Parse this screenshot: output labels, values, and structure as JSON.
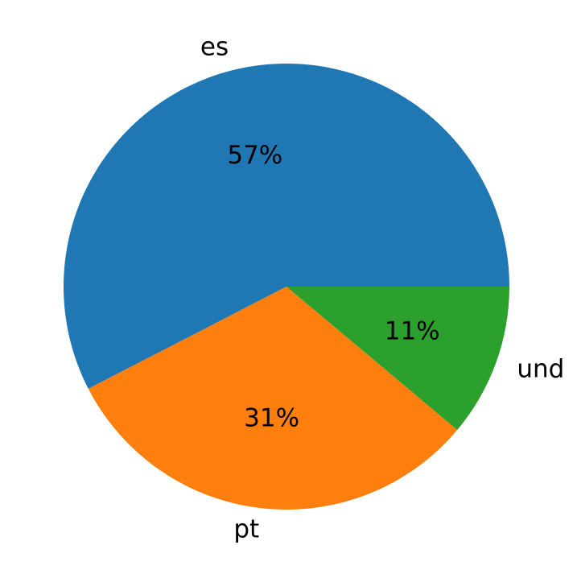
{
  "chart_data": {
    "type": "pie",
    "categories": [
      "es",
      "pt",
      "und"
    ],
    "values": [
      57,
      31,
      11
    ],
    "value_labels": [
      "57%",
      "31%",
      "11%"
    ],
    "colors": [
      "#1f77b4",
      "#ff7f0e",
      "#2ca02c"
    ]
  }
}
